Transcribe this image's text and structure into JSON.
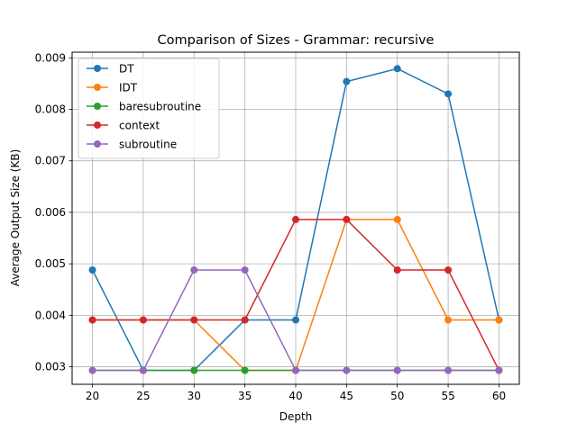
{
  "chart_data": {
    "type": "line",
    "title": "Comparison of Sizes - Grammar: recursive",
    "xlabel": "Depth",
    "ylabel": "Average Output Size (KB)",
    "x": [
      20,
      25,
      30,
      35,
      40,
      45,
      50,
      55,
      60
    ],
    "xticks": [
      "20",
      "25",
      "30",
      "35",
      "40",
      "45",
      "50",
      "55",
      "60"
    ],
    "yticks": [
      0.003,
      0.004,
      0.005,
      0.006,
      0.007,
      0.008,
      0.009
    ],
    "ytick_labels": [
      "0.003",
      "0.004",
      "0.005",
      "0.006",
      "0.007",
      "0.008",
      "0.009"
    ],
    "xlim": [
      18,
      62
    ],
    "ylim": [
      0.00266,
      0.00911
    ],
    "grid": true,
    "legend": "upper-left",
    "series": [
      {
        "name": "DT",
        "color": "#1f77b4",
        "values": [
          0.00488,
          0.00293,
          0.00293,
          0.00391,
          0.00391,
          0.00854,
          0.00879,
          0.0083,
          0.00391
        ]
      },
      {
        "name": "IDT",
        "color": "#ff7f0e",
        "values": [
          0.00391,
          0.00391,
          0.00391,
          0.00293,
          0.00293,
          0.00586,
          0.00586,
          0.00391,
          0.00391
        ]
      },
      {
        "name": "baresubroutine",
        "color": "#2ca02c",
        "values": [
          0.00293,
          0.00293,
          0.00293,
          0.00293,
          0.00293,
          0.00293,
          0.00293,
          0.00293,
          0.00293
        ]
      },
      {
        "name": "context",
        "color": "#d62728",
        "values": [
          0.00391,
          0.00391,
          0.00391,
          0.00391,
          0.00586,
          0.00586,
          0.00488,
          0.00488,
          0.00293
        ]
      },
      {
        "name": "subroutine",
        "color": "#9467bd",
        "values": [
          0.00293,
          0.00293,
          0.00488,
          0.00488,
          0.00293,
          0.00293,
          0.00293,
          0.00293,
          0.00293
        ]
      }
    ]
  }
}
